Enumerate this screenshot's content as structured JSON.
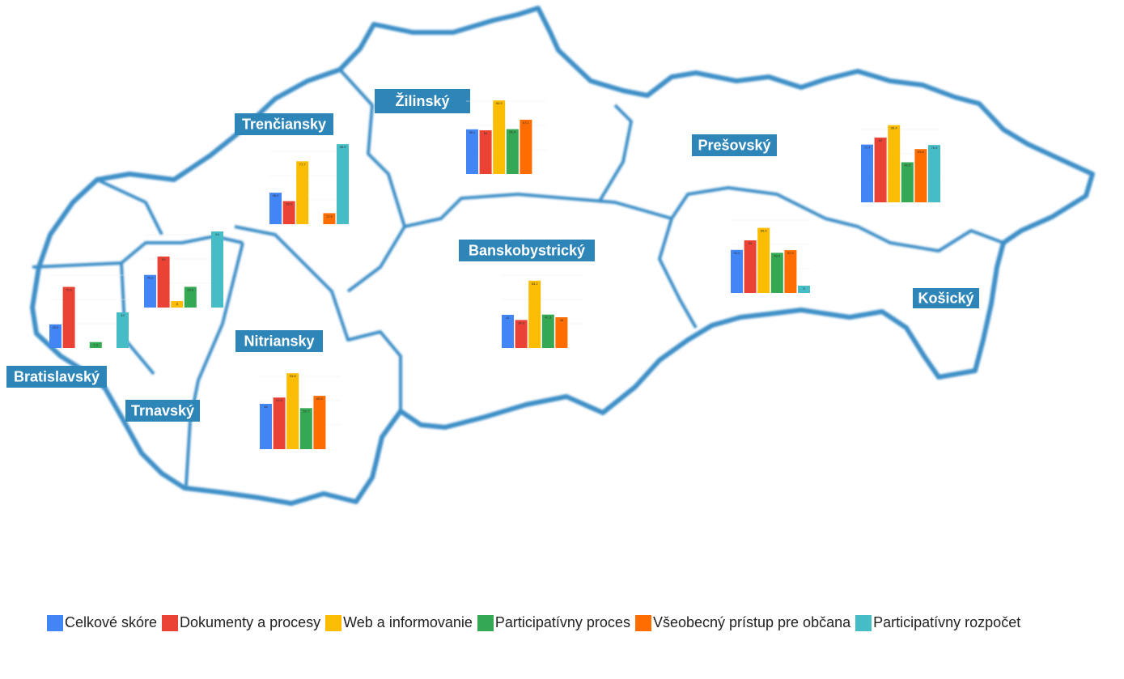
{
  "series": [
    {
      "name": "Celkové skóre",
      "color": "#4285f4"
    },
    {
      "name": "Dokumenty a procesy",
      "color": "#ea4335"
    },
    {
      "name": "Web a informovanie",
      "color": "#fbbc04"
    },
    {
      "name": "Participatívny proces",
      "color": "#34a853"
    },
    {
      "name": "Všeobecný prístup pre občana",
      "color": "#ff6d01"
    },
    {
      "name": "Participatívny rozpočet",
      "color": "#46bdc6"
    }
  ],
  "regions": [
    {
      "name": "Bratislavský",
      "values": [
        29.2,
        75.5,
        null,
        7.3,
        null,
        44.0
      ]
    },
    {
      "name": "Trnavský",
      "values": [
        40.3,
        63.0,
        8.0,
        25.6,
        null,
        94.0
      ]
    },
    {
      "name": "Trenčiansky",
      "values": [
        38.9,
        28.5,
        77.7,
        null,
        13.6,
        98.9
      ]
    },
    {
      "name": "Žilinský",
      "values": [
        55.2,
        54.0,
        90.9,
        55.4,
        67.1,
        null
      ]
    },
    {
      "name": "Prešovský",
      "values": [
        71.4,
        80.0,
        95.4,
        49.5,
        65.8,
        70.9
      ]
    },
    {
      "name": "Banskobystrický",
      "values": [
        41.0,
        34.6,
        83.2,
        41.3,
        38.0,
        null
      ]
    },
    {
      "name": "Nitriansky",
      "values": [
        56.0,
        63.8,
        93.8,
        50.7,
        65.9,
        null
      ]
    },
    {
      "name": "Košický",
      "values": [
        53.2,
        65.0,
        80.4,
        49.6,
        52.9,
        9.0
      ]
    }
  ]
}
